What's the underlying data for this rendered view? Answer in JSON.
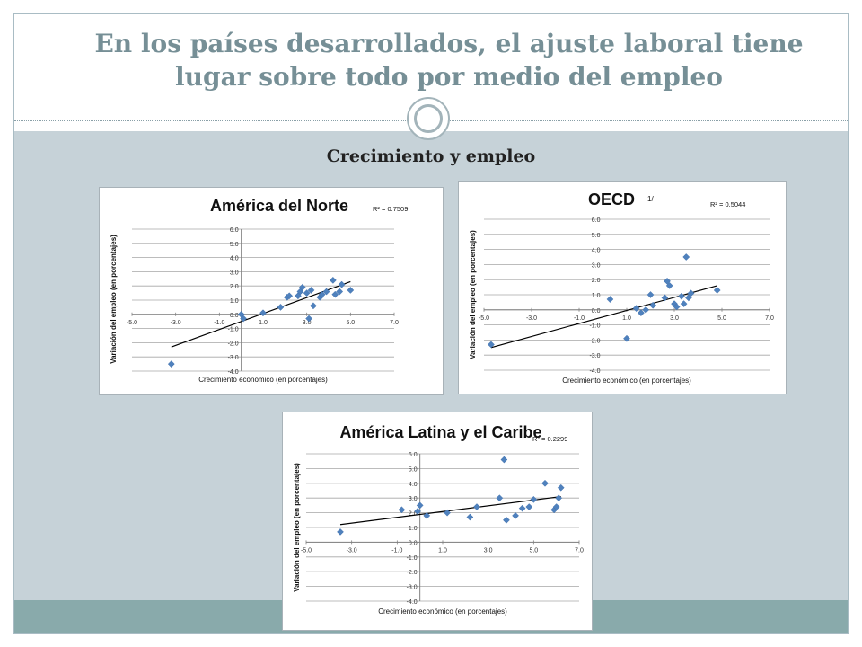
{
  "slide": {
    "title_line1": "En los países desarrollados,  el ajuste laboral tiene",
    "title_line2": "lugar sobre todo por medio del empleo",
    "subtitle": "Crecimiento y empleo"
  },
  "colors": {
    "title": "#768f96",
    "body_background": "#c6d2d8",
    "footer_band": "#89aaab",
    "marker": "#4f81bd",
    "trendline": "#000000"
  },
  "chart_data": [
    {
      "type": "scatter",
      "title": "América del Norte",
      "r2_label": "R² = 0.7509",
      "xlabel": "Crecimiento económico (en porcentajes)",
      "ylabel": "Variación del empleo (en porcentajes)",
      "xlim": [
        -5,
        7
      ],
      "ylim": [
        -4,
        6
      ],
      "x_ticks": [
        "-5.0",
        "-3.0",
        "-1.0",
        "1.0",
        "3.0",
        "5.0",
        "7.0"
      ],
      "y_ticks": [
        "6.0",
        "5.0",
        "4.0",
        "3.0",
        "2.0",
        "1.0",
        "0.0",
        "-1.0",
        "-2.0",
        "-3.0",
        "-4.0"
      ],
      "grid": true,
      "marker": "diamond",
      "points": [
        [
          -3.2,
          -3.5
        ],
        [
          0.0,
          0.0
        ],
        [
          0.1,
          -0.3
        ],
        [
          1.0,
          0.1
        ],
        [
          1.8,
          0.5
        ],
        [
          2.1,
          1.2
        ],
        [
          2.2,
          1.3
        ],
        [
          2.6,
          1.3
        ],
        [
          2.7,
          1.6
        ],
        [
          2.8,
          1.9
        ],
        [
          3.0,
          1.5
        ],
        [
          3.1,
          -0.3
        ],
        [
          3.2,
          1.7
        ],
        [
          3.3,
          0.6
        ],
        [
          3.6,
          1.2
        ],
        [
          3.7,
          1.4
        ],
        [
          3.9,
          1.6
        ],
        [
          4.2,
          2.4
        ],
        [
          4.3,
          1.4
        ],
        [
          4.5,
          1.6
        ],
        [
          4.6,
          2.1
        ],
        [
          5.0,
          1.7
        ]
      ],
      "trendline": [
        [
          -3.2,
          -2.3
        ],
        [
          5.0,
          2.3
        ]
      ]
    },
    {
      "type": "scatter",
      "title": "OECD",
      "title_note": "1/",
      "r2_label": "R² = 0.5044",
      "xlabel": "Crecimiento económico (en porcentajes)",
      "ylabel": "Variación del empleo (en porcentajes)",
      "xlim": [
        -5,
        7
      ],
      "ylim": [
        -4,
        6
      ],
      "x_ticks": [
        "-5.0",
        "-3.0",
        "-1.0",
        "1.0",
        "3.0",
        "5.0",
        "7.0"
      ],
      "y_ticks": [
        "6.0",
        "5.0",
        "4.0",
        "3.0",
        "2.0",
        "1.0",
        "0.0",
        "-1.0",
        "-2.0",
        "-3.0",
        "-4.0"
      ],
      "grid": true,
      "marker": "diamond",
      "points": [
        [
          -4.7,
          -2.3
        ],
        [
          0.3,
          0.7
        ],
        [
          1.0,
          -1.9
        ],
        [
          1.4,
          0.1
        ],
        [
          1.6,
          -0.2
        ],
        [
          1.8,
          0.0
        ],
        [
          2.0,
          1.0
        ],
        [
          2.1,
          0.3
        ],
        [
          2.6,
          0.8
        ],
        [
          2.7,
          1.9
        ],
        [
          2.8,
          1.6
        ],
        [
          3.0,
          0.4
        ],
        [
          3.1,
          0.2
        ],
        [
          3.3,
          0.9
        ],
        [
          3.4,
          0.4
        ],
        [
          3.5,
          3.5
        ],
        [
          3.6,
          0.8
        ],
        [
          3.7,
          1.1
        ],
        [
          4.8,
          1.3
        ]
      ],
      "trendline": [
        [
          -4.7,
          -2.5
        ],
        [
          4.8,
          1.6
        ]
      ]
    },
    {
      "type": "scatter",
      "title": "América Latina y el Caribe",
      "r2_label": "R² = 0.2299",
      "xlabel": "Crecimiento económico (en porcentajes)",
      "ylabel": "Variación del empleo (en porcentajes)",
      "xlim": [
        -5,
        7
      ],
      "ylim": [
        -4,
        6
      ],
      "x_ticks": [
        "-5.0",
        "-3.0",
        "-1.0",
        "1.0",
        "3.0",
        "5.0",
        "7.0"
      ],
      "y_ticks": [
        "6.0",
        "5.0",
        "4.0",
        "3.0",
        "2.0",
        "1.0",
        "0.0",
        "-1.0",
        "-2.0",
        "-3.0",
        "-4.0"
      ],
      "grid": true,
      "marker": "diamond",
      "points": [
        [
          -3.5,
          0.7
        ],
        [
          -0.8,
          2.2
        ],
        [
          -0.1,
          2.1
        ],
        [
          0.0,
          2.5
        ],
        [
          0.3,
          1.8
        ],
        [
          1.2,
          2.0
        ],
        [
          2.2,
          1.7
        ],
        [
          2.5,
          2.4
        ],
        [
          3.5,
          3.0
        ],
        [
          3.7,
          5.6
        ],
        [
          3.8,
          1.5
        ],
        [
          4.2,
          1.8
        ],
        [
          4.5,
          2.3
        ],
        [
          4.8,
          2.4
        ],
        [
          5.0,
          2.9
        ],
        [
          5.5,
          4.0
        ],
        [
          5.9,
          2.2
        ],
        [
          6.0,
          2.4
        ],
        [
          6.1,
          3.0
        ],
        [
          6.2,
          3.7
        ]
      ],
      "trendline": [
        [
          -3.5,
          1.2
        ],
        [
          6.2,
          3.1
        ]
      ]
    }
  ]
}
